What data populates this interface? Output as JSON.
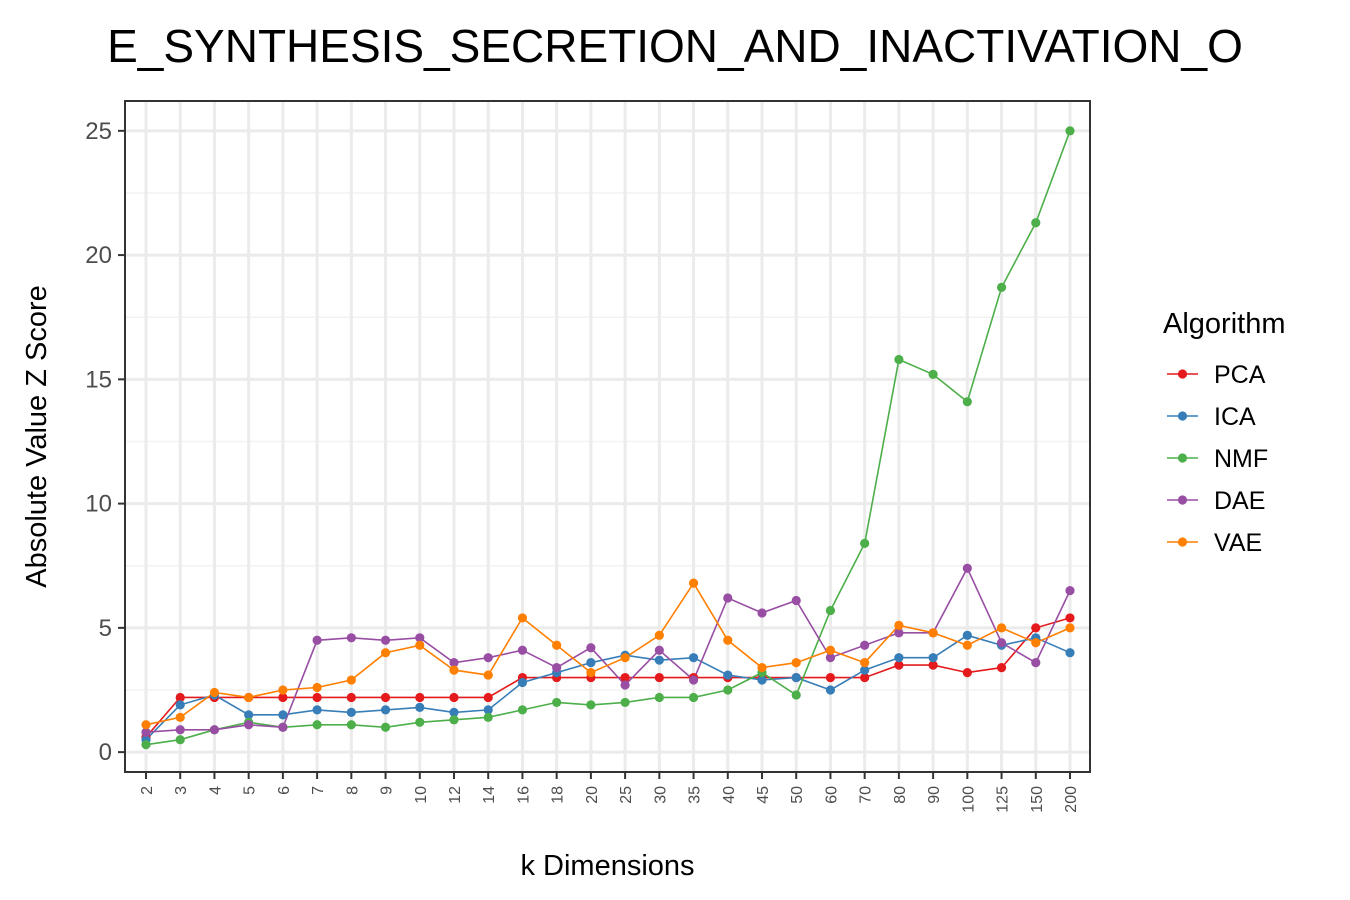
{
  "chart_data": {
    "type": "line",
    "title": "E_SYNTHESIS_SECRETION_AND_INACTIVATION_O",
    "xlabel": "k Dimensions",
    "ylabel": "Absolute Value Z Score",
    "categories": [
      "2",
      "3",
      "4",
      "5",
      "6",
      "7",
      "8",
      "9",
      "10",
      "12",
      "14",
      "16",
      "18",
      "20",
      "25",
      "30",
      "35",
      "40",
      "45",
      "50",
      "60",
      "70",
      "80",
      "90",
      "100",
      "125",
      "150",
      "200"
    ],
    "ylim": [
      -0.8,
      26.2
    ],
    "yticks": [
      0,
      5,
      10,
      15,
      20,
      25
    ],
    "grid": true,
    "legend": {
      "title": "Algorithm",
      "position": "right"
    },
    "series": [
      {
        "name": "PCA",
        "color": "#e41a1c",
        "values": [
          0.6,
          2.2,
          2.2,
          2.2,
          2.2,
          2.2,
          2.2,
          2.2,
          2.2,
          2.2,
          2.2,
          3.0,
          3.0,
          3.0,
          3.0,
          3.0,
          3.0,
          3.0,
          3.0,
          3.0,
          3.0,
          3.0,
          3.5,
          3.5,
          3.2,
          3.4,
          5.0,
          5.4
        ]
      },
      {
        "name": "ICA",
        "color": "#377eb8",
        "values": [
          0.5,
          1.9,
          2.3,
          1.5,
          1.5,
          1.7,
          1.6,
          1.7,
          1.8,
          1.6,
          1.7,
          2.8,
          3.2,
          3.6,
          3.9,
          3.7,
          3.8,
          3.1,
          2.9,
          3.0,
          2.5,
          3.3,
          3.8,
          3.8,
          4.7,
          4.3,
          4.6,
          4.0
        ]
      },
      {
        "name": "NMF",
        "color": "#4daf4a",
        "values": [
          0.3,
          0.5,
          0.9,
          1.2,
          1.0,
          1.1,
          1.1,
          1.0,
          1.2,
          1.3,
          1.4,
          1.7,
          2.0,
          1.9,
          2.0,
          2.2,
          2.2,
          2.5,
          3.2,
          2.3,
          5.7,
          8.4,
          15.8,
          15.2,
          14.1,
          18.7,
          21.3,
          25.0
        ]
      },
      {
        "name": "DAE",
        "color": "#984ea3",
        "values": [
          0.8,
          0.9,
          0.9,
          1.1,
          1.0,
          4.5,
          4.6,
          4.5,
          4.6,
          3.6,
          3.8,
          4.1,
          3.4,
          4.2,
          2.7,
          4.1,
          2.9,
          6.2,
          5.6,
          6.1,
          3.8,
          4.3,
          4.8,
          4.8,
          7.4,
          4.4,
          3.6,
          6.5
        ]
      },
      {
        "name": "VAE",
        "color": "#ff7f00",
        "values": [
          1.1,
          1.4,
          2.4,
          2.2,
          2.5,
          2.6,
          2.9,
          4.0,
          4.3,
          3.3,
          3.1,
          5.4,
          4.3,
          3.2,
          3.8,
          4.7,
          6.8,
          4.5,
          3.4,
          3.6,
          4.1,
          3.6,
          5.1,
          4.8,
          4.3,
          5.0,
          4.4,
          5.0
        ]
      }
    ]
  }
}
